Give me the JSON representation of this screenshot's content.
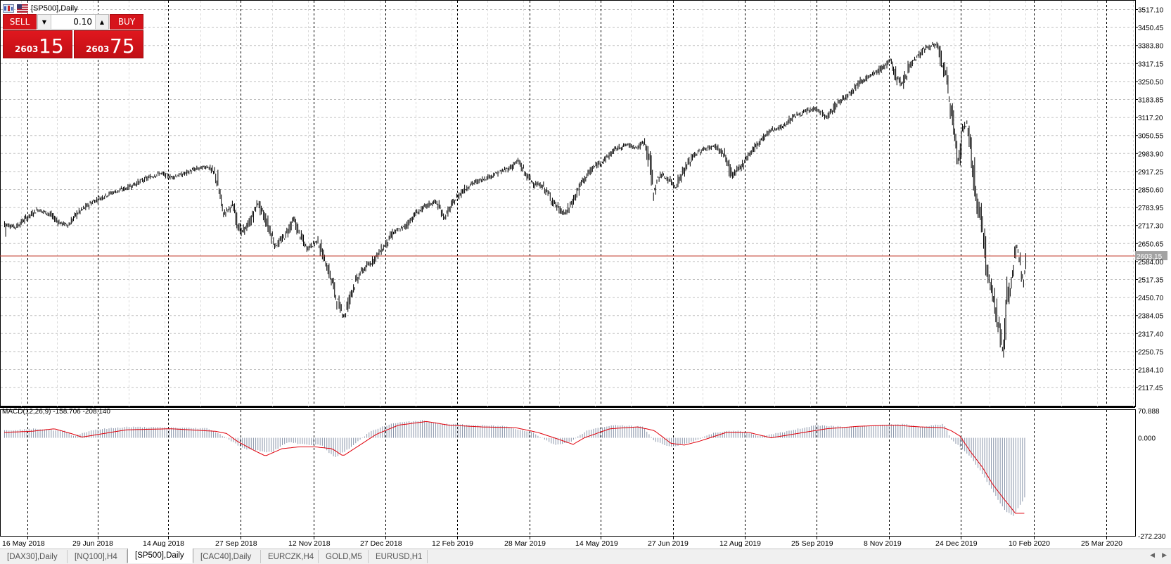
{
  "window": {
    "title": "[SP500],Daily"
  },
  "trade_panel": {
    "sell_label": "SELL",
    "buy_label": "BUY",
    "volume": "0.10",
    "sell_price_prefix": "2603",
    "sell_price_big": "15",
    "buy_price_prefix": "2603",
    "buy_price_big": "75"
  },
  "macd_label": "MACD(12,26,9) -158.706 -208.140",
  "tabs": [
    {
      "label": "[DAX30],Daily",
      "active": false
    },
    {
      "label": "[NQ100],H4",
      "active": false
    },
    {
      "label": "[SP500],Daily",
      "active": true
    },
    {
      "label": "[CAC40],Daily",
      "active": false
    },
    {
      "label": "EURCZK,H4",
      "active": false
    },
    {
      "label": "GOLD,M5",
      "active": false
    },
    {
      "label": "EURUSD,H1",
      "active": false
    }
  ],
  "colors": {
    "bid_line": "#c0392b",
    "signal_line": "#e0000b",
    "histogram": "#8a96aa",
    "grid": "#c0c0c0",
    "price_tag_bg": "#a3a3a3"
  },
  "chart_data": [
    {
      "type": "candlestick",
      "symbol": "[SP500]",
      "timeframe": "Daily",
      "y_ticks": [
        "3517.10",
        "3450.45",
        "3383.80",
        "3317.15",
        "3250.50",
        "3183.85",
        "3117.20",
        "3050.55",
        "2983.90",
        "2917.25",
        "2850.60",
        "2783.95",
        "2717.30",
        "2650.65",
        "2584.00",
        "2517.35",
        "2450.70",
        "2384.05",
        "2317.40",
        "2250.75",
        "2184.10",
        "2117.45"
      ],
      "ylim": [
        2070,
        3535
      ],
      "x_ticks": [
        "16 May 2018",
        "29 Jun 2018",
        "14 Aug 2018",
        "27 Sep 2018",
        "12 Nov 2018",
        "27 Dec 2018",
        "12 Feb 2019",
        "28 Mar 2019",
        "14 May 2019",
        "27 Jun 2019",
        "12 Aug 2019",
        "25 Sep 2019",
        "8 Nov 2019",
        "24 Dec 2019",
        "10 Feb 2020",
        "25 Mar 2020"
      ],
      "current_price_label": "2603.15",
      "current_price": 2603.15,
      "close_path": [
        [
          0,
          2722
        ],
        [
          10,
          2710
        ],
        [
          20,
          2745
        ],
        [
          30,
          2775
        ],
        [
          40,
          2760
        ],
        [
          50,
          2725
        ],
        [
          58,
          2718
        ],
        [
          65,
          2760
        ],
        [
          80,
          2805
        ],
        [
          95,
          2835
        ],
        [
          110,
          2855
        ],
        [
          125,
          2885
        ],
        [
          140,
          2910
        ],
        [
          150,
          2895
        ],
        [
          160,
          2905
        ],
        [
          172,
          2925
        ],
        [
          183,
          2935
        ],
        [
          190,
          2905
        ],
        [
          197,
          2760
        ],
        [
          205,
          2790
        ],
        [
          213,
          2690
        ],
        [
          220,
          2720
        ],
        [
          228,
          2800
        ],
        [
          236,
          2730
        ],
        [
          244,
          2640
        ],
        [
          252,
          2675
        ],
        [
          260,
          2740
        ],
        [
          265,
          2690
        ],
        [
          272,
          2630
        ],
        [
          282,
          2660
        ],
        [
          288,
          2590
        ],
        [
          294,
          2520
        ],
        [
          300,
          2430
        ],
        [
          306,
          2380
        ],
        [
          312,
          2470
        ],
        [
          320,
          2540
        ],
        [
          330,
          2580
        ],
        [
          340,
          2630
        ],
        [
          350,
          2690
        ],
        [
          360,
          2710
        ],
        [
          370,
          2760
        ],
        [
          380,
          2790
        ],
        [
          388,
          2805
        ],
        [
          396,
          2745
        ],
        [
          404,
          2800
        ],
        [
          410,
          2835
        ],
        [
          420,
          2870
        ],
        [
          432,
          2890
        ],
        [
          444,
          2910
        ],
        [
          455,
          2930
        ],
        [
          462,
          2955
        ],
        [
          470,
          2900
        ],
        [
          477,
          2870
        ],
        [
          485,
          2860
        ],
        [
          492,
          2815
        ],
        [
          500,
          2770
        ],
        [
          505,
          2760
        ],
        [
          512,
          2810
        ],
        [
          520,
          2880
        ],
        [
          530,
          2930
        ],
        [
          540,
          2960
        ],
        [
          550,
          3000
        ],
        [
          560,
          3015
        ],
        [
          570,
          3005
        ],
        [
          576,
          3025
        ],
        [
          580,
          2970
        ],
        [
          584,
          2840
        ],
        [
          590,
          2905
        ],
        [
          598,
          2885
        ],
        [
          604,
          2860
        ],
        [
          610,
          2910
        ],
        [
          620,
          2975
        ],
        [
          630,
          3000
        ],
        [
          640,
          3010
        ],
        [
          648,
          2975
        ],
        [
          655,
          2900
        ],
        [
          662,
          2930
        ],
        [
          670,
          2980
        ],
        [
          680,
          3030
        ],
        [
          690,
          3070
        ],
        [
          700,
          3080
        ],
        [
          710,
          3120
        ],
        [
          720,
          3135
        ],
        [
          730,
          3150
        ],
        [
          740,
          3115
        ],
        [
          750,
          3170
        ],
        [
          760,
          3205
        ],
        [
          770,
          3250
        ],
        [
          780,
          3270
        ],
        [
          790,
          3300
        ],
        [
          797,
          3325
        ],
        [
          803,
          3265
        ],
        [
          808,
          3235
        ],
        [
          813,
          3300
        ],
        [
          820,
          3335
        ],
        [
          828,
          3370
        ],
        [
          835,
          3385
        ],
        [
          840,
          3375
        ],
        [
          843,
          3330
        ],
        [
          848,
          3250
        ],
        [
          853,
          3115
        ],
        [
          858,
          2955
        ],
        [
          862,
          3060
        ],
        [
          866,
          3090
        ],
        [
          869,
          3020
        ],
        [
          873,
          2880
        ],
        [
          876,
          2780
        ],
        [
          880,
          2740
        ],
        [
          884,
          2530
        ],
        [
          887,
          2510
        ],
        [
          890,
          2460
        ],
        [
          893,
          2390
        ],
        [
          896,
          2310
        ],
        [
          899,
          2240
        ],
        [
          902,
          2440
        ],
        [
          905,
          2490
        ],
        [
          908,
          2560
        ],
        [
          911,
          2630
        ],
        [
          914,
          2580
        ],
        [
          917,
          2520
        ],
        [
          919,
          2603
        ]
      ]
    },
    {
      "type": "macd",
      "params": [
        12,
        26,
        9
      ],
      "main_value": -158.706,
      "signal_value": -208.14,
      "y_ticks": [
        "70.888",
        "0.000",
        "-272.230"
      ],
      "ylim": [
        -272.23,
        70.888
      ],
      "series": [
        {
          "name": "Main",
          "style": "histogram",
          "values": [
            [
              0,
              20
            ],
            [
              30,
              25
            ],
            [
              55,
              18
            ],
            [
              62,
              5
            ],
            [
              80,
              22
            ],
            [
              110,
              30
            ],
            [
              150,
              28
            ],
            [
              183,
              26
            ],
            [
              197,
              5
            ],
            [
              215,
              -30
            ],
            [
              240,
              -40
            ],
            [
              255,
              -12
            ],
            [
              270,
              -18
            ],
            [
              285,
              -20
            ],
            [
              297,
              -55
            ],
            [
              310,
              -30
            ],
            [
              330,
              20
            ],
            [
              350,
              40
            ],
            [
              375,
              48
            ],
            [
              390,
              40
            ],
            [
              420,
              35
            ],
            [
              450,
              32
            ],
            [
              475,
              15
            ],
            [
              495,
              -20
            ],
            [
              510,
              -10
            ],
            [
              525,
              22
            ],
            [
              550,
              35
            ],
            [
              575,
              30
            ],
            [
              585,
              -10
            ],
            [
              600,
              -25
            ],
            [
              615,
              -15
            ],
            [
              640,
              15
            ],
            [
              660,
              20
            ],
            [
              680,
              5
            ],
            [
              700,
              15
            ],
            [
              730,
              35
            ],
            [
              760,
              30
            ],
            [
              790,
              35
            ],
            [
              810,
              38
            ],
            [
              825,
              30
            ],
            [
              845,
              38
            ],
            [
              852,
              -5
            ],
            [
              860,
              -25
            ],
            [
              870,
              -55
            ],
            [
              880,
              -100
            ],
            [
              890,
              -150
            ],
            [
              900,
              -200
            ],
            [
              908,
              -215
            ],
            [
              914,
              -185
            ],
            [
              919,
              -160
            ]
          ]
        },
        {
          "name": "Signal",
          "style": "line",
          "values": [
            [
              0,
              15
            ],
            [
              25,
              18
            ],
            [
              45,
              25
            ],
            [
              60,
              12
            ],
            [
              70,
              2
            ],
            [
              90,
              12
            ],
            [
              110,
              22
            ],
            [
              150,
              25
            ],
            [
              190,
              18
            ],
            [
              200,
              12
            ],
            [
              210,
              -10
            ],
            [
              225,
              -35
            ],
            [
              235,
              -50
            ],
            [
              250,
              -30
            ],
            [
              265,
              -25
            ],
            [
              280,
              -25
            ],
            [
              295,
              -30
            ],
            [
              305,
              -50
            ],
            [
              315,
              -30
            ],
            [
              335,
              10
            ],
            [
              355,
              35
            ],
            [
              380,
              45
            ],
            [
              400,
              35
            ],
            [
              430,
              30
            ],
            [
              460,
              28
            ],
            [
              480,
              15
            ],
            [
              495,
              0
            ],
            [
              512,
              -18
            ],
            [
              522,
              0
            ],
            [
              545,
              25
            ],
            [
              570,
              30
            ],
            [
              585,
              20
            ],
            [
              600,
              -15
            ],
            [
              612,
              -20
            ],
            [
              625,
              -10
            ],
            [
              650,
              15
            ],
            [
              670,
              15
            ],
            [
              690,
              0
            ],
            [
              710,
              10
            ],
            [
              740,
              25
            ],
            [
              770,
              32
            ],
            [
              800,
              35
            ],
            [
              825,
              30
            ],
            [
              845,
              28
            ],
            [
              852,
              20
            ],
            [
              860,
              5
            ],
            [
              870,
              -40
            ],
            [
              880,
              -80
            ],
            [
              890,
              -130
            ],
            [
              900,
              -170
            ],
            [
              910,
              -208
            ],
            [
              919,
              -208
            ]
          ]
        }
      ]
    }
  ]
}
